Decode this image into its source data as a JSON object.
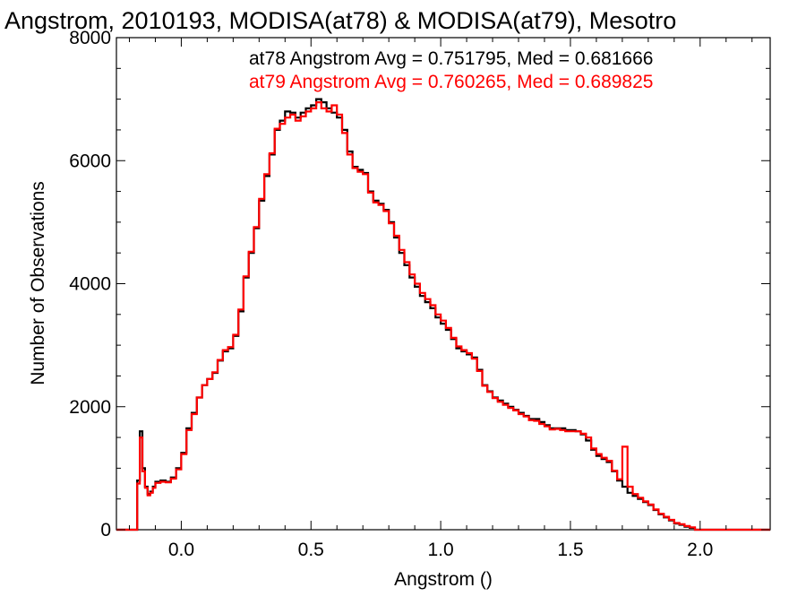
{
  "chart_data": {
    "type": "histogram-step",
    "title": "Angstrom, 2010193, MODISA(at78) & MODISA(at79), Mesotro",
    "xlabel": "Angstrom ()",
    "ylabel": "Number of Observations",
    "xlim": [
      -0.25,
      2.27
    ],
    "ylim": [
      0,
      8000
    ],
    "xticks": [
      0.0,
      0.5,
      1.0,
      1.5,
      2.0
    ],
    "xtick_labels": [
      "0.0",
      "0.5",
      "1.0",
      "1.5",
      "2.0"
    ],
    "yticks": [
      0,
      2000,
      4000,
      6000,
      8000
    ],
    "ytick_labels": [
      "0",
      "2000",
      "4000",
      "6000",
      "8000"
    ],
    "legend": [
      {
        "text": "at78 Angstrom Avg = 0.751795, Med = 0.681666",
        "color": "#000000"
      },
      {
        "text": "at79 Angstrom Avg = 0.760265, Med = 0.689825",
        "color": "#ff0000"
      }
    ],
    "series": [
      {
        "color": "#000000",
        "x": [
          -0.25,
          -0.17,
          -0.16,
          -0.15,
          -0.14,
          -0.13,
          -0.12,
          -0.11,
          -0.1,
          -0.08,
          -0.06,
          -0.04,
          -0.02,
          0.0,
          0.02,
          0.04,
          0.06,
          0.08,
          0.1,
          0.12,
          0.14,
          0.16,
          0.18,
          0.2,
          0.22,
          0.24,
          0.26,
          0.28,
          0.3,
          0.32,
          0.34,
          0.36,
          0.38,
          0.4,
          0.42,
          0.44,
          0.46,
          0.48,
          0.5,
          0.52,
          0.54,
          0.56,
          0.58,
          0.6,
          0.62,
          0.64,
          0.66,
          0.68,
          0.7,
          0.72,
          0.74,
          0.76,
          0.78,
          0.8,
          0.82,
          0.84,
          0.86,
          0.88,
          0.9,
          0.92,
          0.94,
          0.96,
          0.98,
          1.0,
          1.02,
          1.04,
          1.06,
          1.08,
          1.1,
          1.12,
          1.14,
          1.16,
          1.18,
          1.2,
          1.22,
          1.24,
          1.26,
          1.28,
          1.3,
          1.32,
          1.34,
          1.36,
          1.38,
          1.4,
          1.42,
          1.44,
          1.46,
          1.48,
          1.5,
          1.52,
          1.54,
          1.56,
          1.58,
          1.6,
          1.62,
          1.64,
          1.66,
          1.68,
          1.7,
          1.72,
          1.74,
          1.76,
          1.78,
          1.8,
          1.82,
          1.84,
          1.86,
          1.88,
          1.9,
          1.92,
          1.94,
          1.96,
          1.98,
          2.0,
          2.02,
          2.04,
          2.06,
          2.08,
          2.1,
          2.12,
          2.14,
          2.16,
          2.27
        ],
        "y": [
          0,
          800,
          1600,
          1000,
          700,
          580,
          620,
          700,
          780,
          800,
          780,
          850,
          1000,
          1250,
          1650,
          1900,
          2150,
          2350,
          2450,
          2550,
          2750,
          2900,
          2950,
          3150,
          3550,
          4100,
          4500,
          4900,
          5350,
          5750,
          6100,
          6500,
          6650,
          6800,
          6780,
          6700,
          6780,
          6850,
          6900,
          7000,
          6950,
          6850,
          6780,
          6700,
          6500,
          6150,
          5900,
          5850,
          5800,
          5500,
          5350,
          5300,
          5200,
          5000,
          4750,
          4500,
          4300,
          4100,
          3950,
          3800,
          3700,
          3600,
          3450,
          3350,
          3250,
          3100,
          2950,
          2900,
          2850,
          2800,
          2600,
          2350,
          2250,
          2150,
          2100,
          2050,
          2000,
          1950,
          1900,
          1850,
          1800,
          1800,
          1750,
          1700,
          1650,
          1650,
          1650,
          1620,
          1620,
          1600,
          1550,
          1450,
          1300,
          1200,
          1150,
          1100,
          950,
          800,
          700,
          600,
          550,
          500,
          450,
          400,
          320,
          250,
          200,
          150,
          100,
          80,
          50,
          30,
          0,
          0,
          0,
          0,
          0,
          0,
          0,
          0,
          0,
          0
        ]
      },
      {
        "color": "#ff0000",
        "x": [
          -0.25,
          -0.17,
          -0.16,
          -0.15,
          -0.14,
          -0.13,
          -0.12,
          -0.11,
          -0.1,
          -0.08,
          -0.06,
          -0.04,
          -0.02,
          0.0,
          0.02,
          0.04,
          0.06,
          0.08,
          0.1,
          0.12,
          0.14,
          0.16,
          0.18,
          0.2,
          0.22,
          0.24,
          0.26,
          0.28,
          0.3,
          0.32,
          0.34,
          0.36,
          0.38,
          0.4,
          0.42,
          0.44,
          0.46,
          0.48,
          0.5,
          0.52,
          0.54,
          0.56,
          0.58,
          0.6,
          0.62,
          0.64,
          0.66,
          0.68,
          0.7,
          0.72,
          0.74,
          0.76,
          0.78,
          0.8,
          0.82,
          0.84,
          0.86,
          0.88,
          0.9,
          0.92,
          0.94,
          0.96,
          0.98,
          1.0,
          1.02,
          1.04,
          1.06,
          1.08,
          1.1,
          1.12,
          1.14,
          1.16,
          1.18,
          1.2,
          1.22,
          1.24,
          1.26,
          1.28,
          1.3,
          1.32,
          1.34,
          1.36,
          1.38,
          1.4,
          1.42,
          1.44,
          1.46,
          1.48,
          1.5,
          1.52,
          1.54,
          1.56,
          1.58,
          1.6,
          1.62,
          1.64,
          1.66,
          1.68,
          1.7,
          1.72,
          1.74,
          1.76,
          1.78,
          1.8,
          1.82,
          1.84,
          1.86,
          1.88,
          1.9,
          1.92,
          1.94,
          1.96,
          1.98,
          2.0,
          2.02,
          2.04,
          2.06,
          2.08,
          2.1,
          2.12,
          2.14,
          2.16,
          2.27
        ],
        "y": [
          0,
          750,
          1500,
          950,
          680,
          560,
          600,
          680,
          760,
          780,
          770,
          830,
          980,
          1230,
          1620,
          1880,
          2150,
          2350,
          2450,
          2560,
          2760,
          2920,
          2970,
          3170,
          3580,
          4120,
          4520,
          4920,
          5380,
          5780,
          6120,
          6520,
          6600,
          6700,
          6750,
          6650,
          6720,
          6800,
          6850,
          6950,
          6850,
          6800,
          6900,
          6750,
          6450,
          6100,
          5880,
          5820,
          5780,
          5480,
          5320,
          5280,
          5180,
          4980,
          4780,
          4550,
          4350,
          4150,
          4000,
          3850,
          3750,
          3650,
          3500,
          3400,
          3280,
          3120,
          2980,
          2920,
          2870,
          2780,
          2580,
          2340,
          2240,
          2140,
          2080,
          2030,
          1980,
          1940,
          1880,
          1840,
          1780,
          1770,
          1720,
          1680,
          1630,
          1640,
          1620,
          1600,
          1600,
          1600,
          1560,
          1500,
          1320,
          1230,
          1170,
          1120,
          960,
          820,
          1350,
          700,
          580,
          520,
          460,
          410,
          330,
          260,
          210,
          160,
          110,
          90,
          60,
          40,
          0,
          0,
          0,
          0,
          0,
          0,
          0,
          0,
          0,
          0
        ]
      }
    ]
  }
}
